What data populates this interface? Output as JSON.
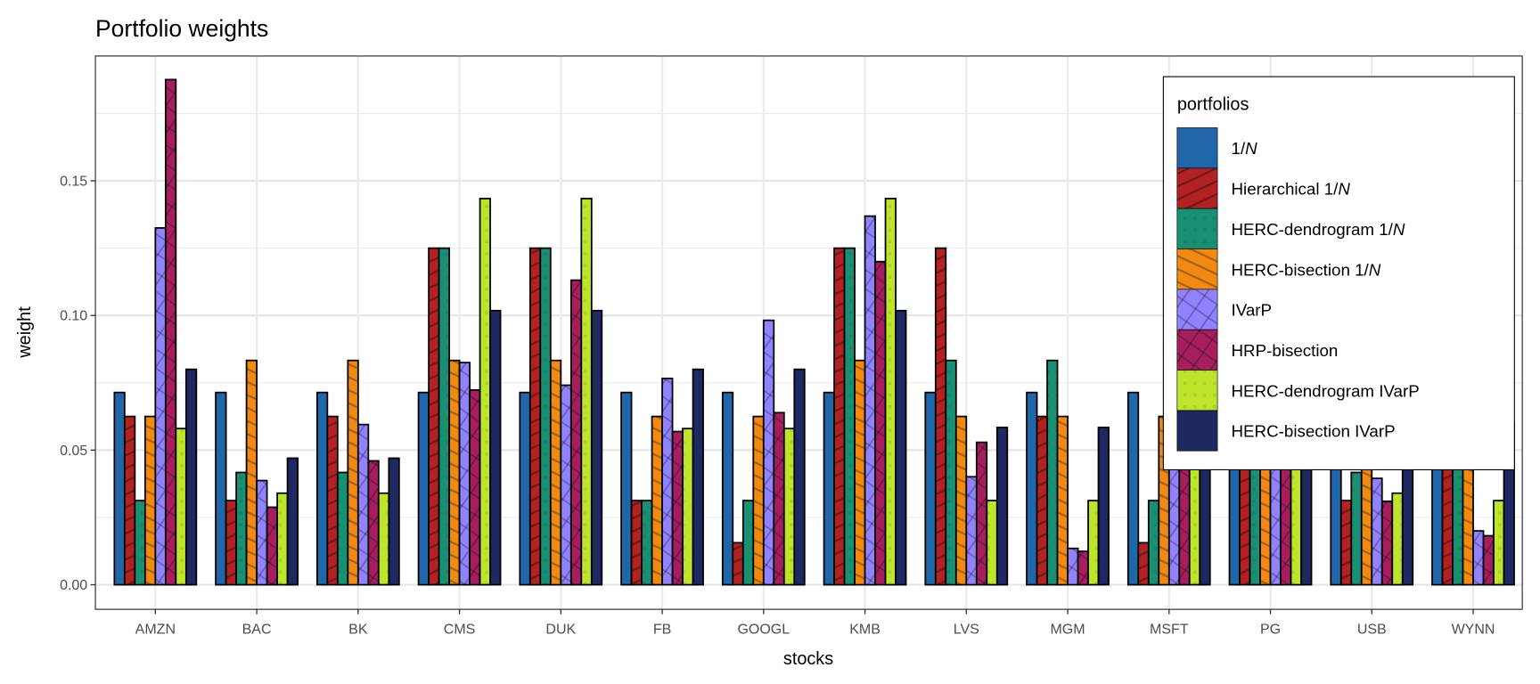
{
  "chart_data": {
    "type": "bar",
    "title": "Portfolio weights",
    "xlabel": "stocks",
    "ylabel": "weight",
    "ylim": [
      -0.009,
      0.196
    ],
    "yticks": [
      "0.00",
      "0.05",
      "0.10",
      "0.15"
    ],
    "ytick_values": [
      0,
      0.05,
      0.1,
      0.15
    ],
    "grid": true,
    "legend": {
      "title": "portfolios",
      "placement": "top-right"
    },
    "categories": [
      "AMZN",
      "BAC",
      "BK",
      "CMS",
      "DUK",
      "FB",
      "GOOGL",
      "KMB",
      "LVS",
      "MGM",
      "MSFT",
      "PG",
      "USB",
      "WYNN"
    ],
    "series": [
      {
        "name": "1/N",
        "color": "#2166A8",
        "pattern": "none",
        "values": [
          0.0714,
          0.0714,
          0.0714,
          0.0714,
          0.0714,
          0.0714,
          0.0714,
          0.0714,
          0.0714,
          0.0714,
          0.0714,
          0.0714,
          0.0714,
          0.0714
        ]
      },
      {
        "name": "Hierarchical 1/N",
        "color": "#B22222",
        "pattern": "stripe",
        "values": [
          0.0625,
          0.03125,
          0.0625,
          0.125,
          0.125,
          0.03125,
          0.0156,
          0.125,
          0.125,
          0.0625,
          0.0156,
          0.0625,
          0.03125,
          0.0625
        ]
      },
      {
        "name": "HERC-dendrogram 1/N",
        "color": "#1A9073",
        "pattern": "dots",
        "values": [
          0.03125,
          0.0417,
          0.0417,
          0.125,
          0.125,
          0.03125,
          0.03125,
          0.125,
          0.0833,
          0.0833,
          0.03125,
          0.0625,
          0.0417,
          0.0625
        ]
      },
      {
        "name": "HERC-bisection 1/N",
        "color": "#F08A12",
        "pattern": "stripe2",
        "values": [
          0.0625,
          0.0833,
          0.0833,
          0.0833,
          0.0833,
          0.0625,
          0.0625,
          0.0833,
          0.0625,
          0.0625,
          0.0625,
          0.0625,
          0.0625,
          0.0625
        ]
      },
      {
        "name": "IVarP",
        "color": "#9183FF",
        "pattern": "cross",
        "values": [
          0.1325,
          0.0387,
          0.0595,
          0.0825,
          0.0741,
          0.0766,
          0.0982,
          0.1369,
          0.0401,
          0.0135,
          0.055,
          0.065,
          0.0395,
          0.02
        ]
      },
      {
        "name": "HRP-bisection",
        "color": "#A51F5F",
        "pattern": "cross",
        "values": [
          0.1876,
          0.0288,
          0.046,
          0.0723,
          0.1131,
          0.0569,
          0.0639,
          0.12,
          0.0529,
          0.0124,
          0.05,
          0.07,
          0.031,
          0.0182
        ]
      },
      {
        "name": "HERC-dendrogram IVarP",
        "color": "#BDE52C",
        "pattern": "dots",
        "values": [
          0.058,
          0.034,
          0.034,
          0.1434,
          0.1434,
          0.058,
          0.058,
          0.1434,
          0.03125,
          0.03125,
          0.058,
          0.058,
          0.034,
          0.03125
        ]
      },
      {
        "name": "HERC-bisection IVarP",
        "color": "#1E2961",
        "pattern": "none",
        "values": [
          0.08,
          0.047,
          0.047,
          0.1018,
          0.1018,
          0.08,
          0.08,
          0.1018,
          0.0584,
          0.0584,
          0.06,
          0.07,
          0.06,
          0.06
        ]
      }
    ]
  }
}
